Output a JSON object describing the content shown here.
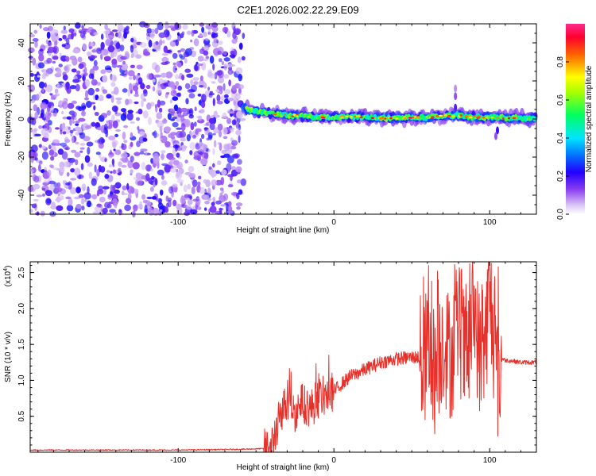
{
  "title": "C2E1.2026.002.22.29.E09",
  "chart_data": [
    {
      "type": "heatmap",
      "name": "spectrogram",
      "xlabel": "Height of straight line (km)",
      "ylabel": "Frequency (Hz)",
      "xlim": [
        -195,
        130
      ],
      "ylim": [
        -50,
        50
      ],
      "xticks": [
        -100,
        0,
        100
      ],
      "yticks": [
        -40,
        -20,
        0,
        20,
        40
      ],
      "description_series": {
        "noise_region_km": [
          -195,
          -58
        ],
        "signal_track": {
          "x": [
            -58,
            -50,
            -40,
            -30,
            -20,
            -10,
            0,
            10,
            20,
            30,
            40,
            50,
            60,
            70,
            80,
            90,
            100,
            110,
            120,
            130
          ],
          "freq_hz": [
            6,
            4,
            3,
            2,
            1.5,
            1,
            1,
            1.2,
            1,
            0.5,
            0.5,
            0.8,
            1,
            1.5,
            2,
            1,
            1,
            0.5,
            0.5,
            0.5
          ]
        }
      },
      "colorbar": {
        "label": "Normalized spectral amplitude",
        "range": [
          0.0,
          1.0
        ],
        "ticks": [
          0.0,
          0.2,
          0.4,
          0.6,
          0.8
        ],
        "tick_labels": [
          "0.0",
          "0.2",
          "0.4",
          "0.6",
          "0.8"
        ]
      }
    },
    {
      "type": "line",
      "name": "snr",
      "xlabel": "Height of straight line (km)",
      "ylabel": "SNR (10 * v/v)",
      "multiplier_label": "(x10",
      "multiplier_exp": "4",
      "multiplier_close": ")",
      "xlim": [
        -195,
        130
      ],
      "ylim": [
        0.0,
        2.65
      ],
      "xticks": [
        -100,
        0,
        100
      ],
      "yticks": [
        0.5,
        1.0,
        1.5,
        2.0,
        2.5
      ],
      "ytick_labels": [
        "0.5",
        "1.0",
        "1.5",
        "2.0",
        "2.5"
      ],
      "series": [
        {
          "name": "SNR",
          "color": "#e8302a",
          "x": [
            -195,
            -150,
            -100,
            -60,
            -45,
            -40,
            -36,
            -33,
            -30,
            -25,
            -20,
            -15,
            -10,
            -5,
            0,
            5,
            10,
            20,
            30,
            40,
            50,
            55,
            58,
            60,
            65,
            70,
            75,
            80,
            85,
            90,
            95,
            100,
            105,
            108,
            110,
            115,
            120,
            130
          ],
          "y": [
            0.03,
            0.03,
            0.03,
            0.04,
            0.05,
            0.1,
            0.4,
            0.6,
            0.7,
            0.55,
            0.7,
            0.6,
            0.75,
            0.8,
            0.85,
            0.95,
            1.05,
            1.15,
            1.25,
            1.3,
            1.32,
            1.32,
            1.2,
            1.5,
            1.1,
            1.6,
            1.3,
            1.8,
            1.2,
            2.0,
            1.1,
            2.2,
            1.0,
            1.3,
            1.28,
            1.27,
            1.25,
            1.25
          ]
        }
      ]
    }
  ]
}
